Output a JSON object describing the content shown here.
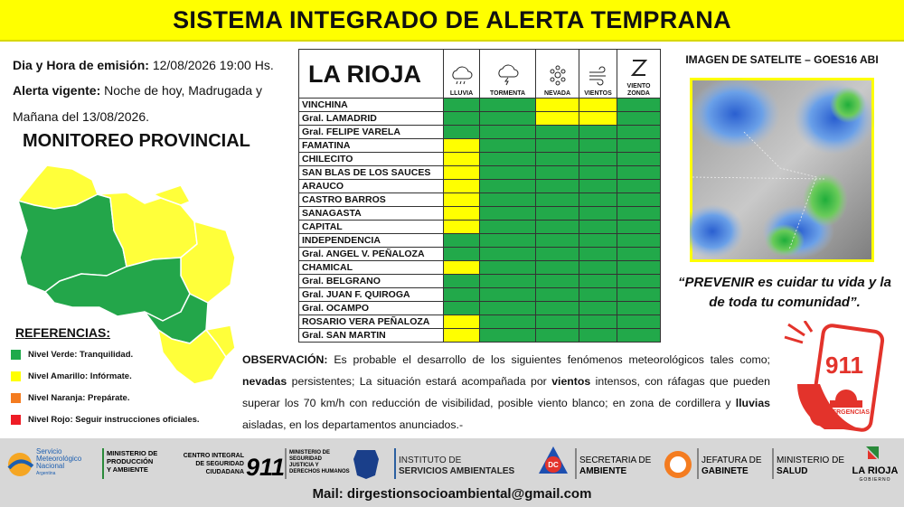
{
  "header": {
    "title": "SISTEMA INTEGRADO DE ALERTA TEMPRANA"
  },
  "info": {
    "emission_label": "Dia y Hora de emisión:",
    "emission_value": "12/08/2026  19:00 Hs.",
    "alert_label": "Alerta vigente:",
    "alert_value": "Noche de hoy, Madrugada y Mañana del 13/08/2026."
  },
  "monitor": {
    "title": "MONITOREO PROVINCIAL"
  },
  "references": {
    "title": "REFERENCIAS:",
    "items": [
      {
        "label": "Nivel Verde: Tranquilidad.",
        "color": "#1faa4b"
      },
      {
        "label": "Nivel Amarillo:  Infórmate.",
        "color": "#ffff00"
      },
      {
        "label": "Nivel Naranja:  Prepárate.",
        "color": "#f47c20"
      },
      {
        "label": "Nivel Rojo: Seguir instrucciones oficiales.",
        "color": "#ee1c25"
      }
    ]
  },
  "table": {
    "title": "LA RIOJA",
    "columns": [
      "LLUVIA",
      "TORMENTA",
      "NEVADA",
      "VIENTOS",
      "VIENTO ZONDA"
    ],
    "rows": [
      {
        "name": "VINCHINA",
        "levels": [
          "#22a94a",
          "#22a94a",
          "#ffff00",
          "#ffff00",
          "#22a94a"
        ]
      },
      {
        "name": "Gral. LAMADRID",
        "levels": [
          "#22a94a",
          "#22a94a",
          "#ffff00",
          "#ffff00",
          "#22a94a"
        ]
      },
      {
        "name": "Gral. FELIPE VARELA",
        "levels": [
          "#22a94a",
          "#22a94a",
          "#22a94a",
          "#22a94a",
          "#22a94a"
        ]
      },
      {
        "name": "FAMATINA",
        "levels": [
          "#ffff00",
          "#22a94a",
          "#22a94a",
          "#22a94a",
          "#22a94a"
        ]
      },
      {
        "name": "CHILECITO",
        "levels": [
          "#ffff00",
          "#22a94a",
          "#22a94a",
          "#22a94a",
          "#22a94a"
        ]
      },
      {
        "name": "SAN BLAS DE LOS SAUCES",
        "levels": [
          "#ffff00",
          "#22a94a",
          "#22a94a",
          "#22a94a",
          "#22a94a"
        ]
      },
      {
        "name": "ARAUCO",
        "levels": [
          "#ffff00",
          "#22a94a",
          "#22a94a",
          "#22a94a",
          "#22a94a"
        ]
      },
      {
        "name": "CASTRO BARROS",
        "levels": [
          "#ffff00",
          "#22a94a",
          "#22a94a",
          "#22a94a",
          "#22a94a"
        ]
      },
      {
        "name": "SANAGASTA",
        "levels": [
          "#ffff00",
          "#22a94a",
          "#22a94a",
          "#22a94a",
          "#22a94a"
        ]
      },
      {
        "name": "CAPITAL",
        "levels": [
          "#ffff00",
          "#22a94a",
          "#22a94a",
          "#22a94a",
          "#22a94a"
        ]
      },
      {
        "name": "INDEPENDENCIA",
        "levels": [
          "#22a94a",
          "#22a94a",
          "#22a94a",
          "#22a94a",
          "#22a94a"
        ]
      },
      {
        "name": "Gral. ANGEL V. PEÑALOZA",
        "levels": [
          "#22a94a",
          "#22a94a",
          "#22a94a",
          "#22a94a",
          "#22a94a"
        ]
      },
      {
        "name": "CHAMICAL",
        "levels": [
          "#ffff00",
          "#22a94a",
          "#22a94a",
          "#22a94a",
          "#22a94a"
        ]
      },
      {
        "name": "Gral. BELGRANO",
        "levels": [
          "#22a94a",
          "#22a94a",
          "#22a94a",
          "#22a94a",
          "#22a94a"
        ]
      },
      {
        "name": "Gral. JUAN F. QUIROGA",
        "levels": [
          "#22a94a",
          "#22a94a",
          "#22a94a",
          "#22a94a",
          "#22a94a"
        ]
      },
      {
        "name": "Gral. OCAMPO",
        "levels": [
          "#22a94a",
          "#22a94a",
          "#22a94a",
          "#22a94a",
          "#22a94a"
        ]
      },
      {
        "name": "ROSARIO VERA PEÑALOZA",
        "levels": [
          "#ffff00",
          "#22a94a",
          "#22a94a",
          "#22a94a",
          "#22a94a"
        ]
      },
      {
        "name": "Gral. SAN MARTIN",
        "levels": [
          "#ffff00",
          "#22a94a",
          "#22a94a",
          "#22a94a",
          "#22a94a"
        ]
      }
    ]
  },
  "satellite": {
    "title": "IMAGEN DE SATELITE – GOES16 ABI"
  },
  "quote": {
    "text": "“PREVENIR es cuidar tu vida y la de toda tu comunidad”."
  },
  "observation": {
    "segments": [
      {
        "text": "OBSERVACIÓN:",
        "bold": true
      },
      {
        "text": " Es probable el desarrollo de los siguientes fenómenos meteorológicos tales como; ",
        "bold": false
      },
      {
        "text": "nevadas",
        "bold": true
      },
      {
        "text": " persistentes; La situación estará acompañada por ",
        "bold": false
      },
      {
        "text": "vientos",
        "bold": true
      },
      {
        "text": " intensos, con ráfagas que pueden superar los 70 km/h con reducción de visibilidad, posible viento blanco; en zona de cordillera y ",
        "bold": false
      },
      {
        "text": "lluvias",
        "bold": true
      },
      {
        "text": " aisladas, en los departamentos anunciados.-",
        "bold": false
      }
    ]
  },
  "emergency": {
    "number": "911",
    "label": "EMERGENCIAS"
  },
  "footer": {
    "logos": [
      {
        "lines": [
          "Servicio",
          "Meteorológico",
          "Nacional",
          "Argentina"
        ]
      },
      {
        "lines": [
          "MINISTERIO DE",
          "PRODUCCIÓN",
          "Y AMBIENTE"
        ]
      },
      {
        "lines": [
          "CENTRO INTEGRAL",
          "DE SEGURIDAD",
          "CIUDADANA",
          "911"
        ]
      },
      {
        "lines": [
          "MINISTERIO DE",
          "SEGURIDAD",
          "JUSTICIA Y",
          "DERECHOS HUMANOS"
        ]
      },
      {
        "lines": [
          "INSTITUTO DE",
          "SERVICIOS AMBIENTALES"
        ]
      },
      {
        "lines": [
          "DC"
        ]
      },
      {
        "lines": [
          "SECRETARIA DE",
          "AMBIENTE"
        ]
      },
      {
        "lines": [
          "JEFATURA DE",
          "GABINETE"
        ]
      },
      {
        "lines": [
          "MINISTERIO DE",
          "SALUD"
        ]
      },
      {
        "lines": [
          "LA RIOJA",
          "GOBIERNO"
        ]
      }
    ],
    "email": "Mail: dirgestionsocioambiental@gmail.com"
  }
}
